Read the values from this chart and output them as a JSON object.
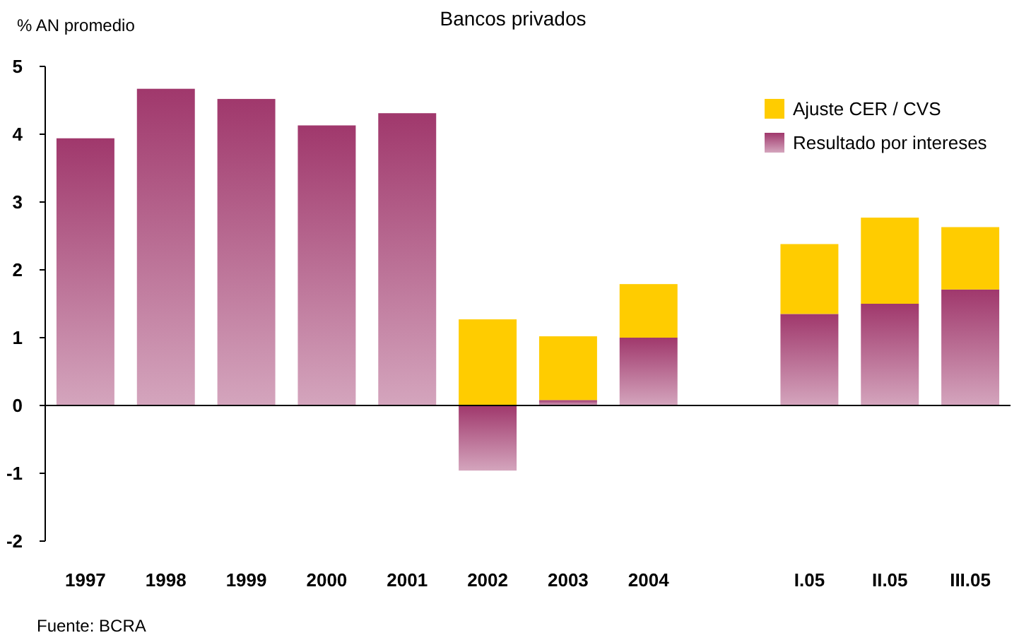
{
  "chart_data": {
    "type": "bar",
    "title": "Bancos privados",
    "ylabel": "% AN promedio",
    "stacked": true,
    "categories": [
      "1997",
      "1998",
      "1999",
      "2000",
      "2001",
      "2002",
      "2003",
      "2004",
      null,
      "I.05",
      "II.05",
      "III.05"
    ],
    "series": [
      {
        "name": "Resultado por intereses",
        "color": "#a0386c",
        "values": [
          3.94,
          4.67,
          4.52,
          4.13,
          4.31,
          -0.96,
          0.08,
          1.0,
          null,
          1.35,
          1.5,
          1.71
        ]
      },
      {
        "name": "Ajuste CER / CVS",
        "color": "#ffcc00",
        "values": [
          null,
          null,
          null,
          null,
          null,
          1.27,
          0.94,
          0.79,
          null,
          1.03,
          1.27,
          0.92
        ]
      }
    ],
    "ylim": [
      -2,
      5
    ],
    "yticks": [
      -2,
      -1,
      0,
      1,
      2,
      3,
      4,
      5
    ],
    "legend": "top right",
    "annotations": [
      "Fuente: BCRA"
    ]
  }
}
